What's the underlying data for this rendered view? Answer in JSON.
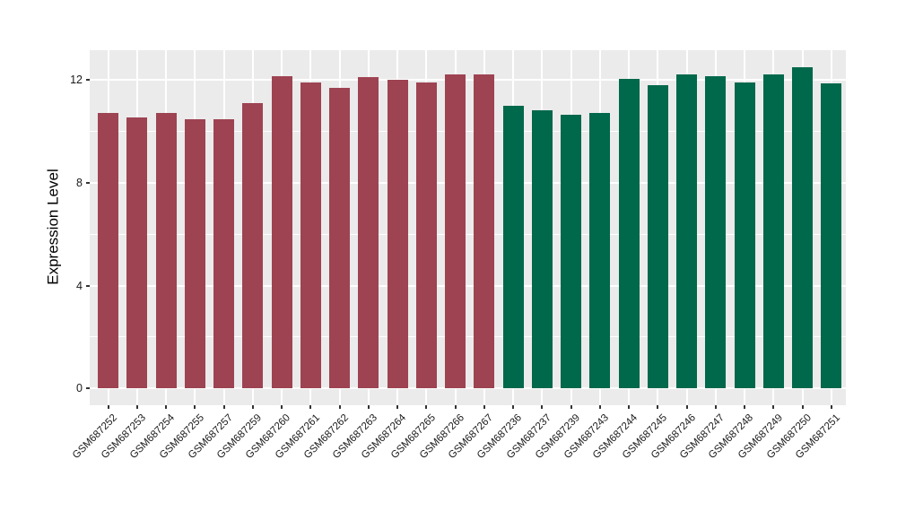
{
  "figure": {
    "title": "",
    "background_color": "#FFFFFF",
    "panel_background_color": "#EBEBEB",
    "gridline_color": "#FFFFFF",
    "tick_mark_color": "#333333",
    "text_color": "#1A1A1A"
  },
  "chart_data": {
    "type": "bar",
    "title": "",
    "xlabel": "",
    "ylabel": "Expression Level",
    "ylim": [
      -0.65,
      13.15
    ],
    "yticks": [
      0,
      4,
      8,
      12
    ],
    "yticks_minor": [
      2,
      6,
      10
    ],
    "grid": true,
    "legend_position": "none",
    "x_tick_label_rotation_deg": -45,
    "categories": [
      "GSM687252",
      "GSM687253",
      "GSM687254",
      "GSM687255",
      "GSM687257",
      "GSM687259",
      "GSM687260",
      "GSM687261",
      "GSM687262",
      "GSM687263",
      "GSM687264",
      "GSM687265",
      "GSM687266",
      "GSM687267",
      "GSM687236",
      "GSM687237",
      "GSM687239",
      "GSM687243",
      "GSM687244",
      "GSM687245",
      "GSM687246",
      "GSM687247",
      "GSM687248",
      "GSM687249",
      "GSM687250",
      "GSM687251"
    ],
    "values": [
      10.7,
      10.55,
      10.7,
      10.45,
      10.45,
      11.1,
      12.15,
      11.9,
      11.7,
      12.1,
      12.0,
      11.9,
      12.2,
      12.2,
      11.0,
      10.8,
      10.65,
      10.7,
      12.05,
      11.8,
      12.2,
      12.15,
      11.9,
      12.2,
      12.5,
      11.85
    ],
    "bar_color_keys": [
      "maroon",
      "maroon",
      "maroon",
      "maroon",
      "maroon",
      "maroon",
      "maroon",
      "maroon",
      "maroon",
      "maroon",
      "maroon",
      "maroon",
      "maroon",
      "maroon",
      "green",
      "green",
      "green",
      "green",
      "green",
      "green",
      "green",
      "green",
      "green",
      "green",
      "green",
      "green"
    ],
    "bar_colors": {
      "maroon": "#9E4352",
      "green": "#00684B"
    }
  }
}
